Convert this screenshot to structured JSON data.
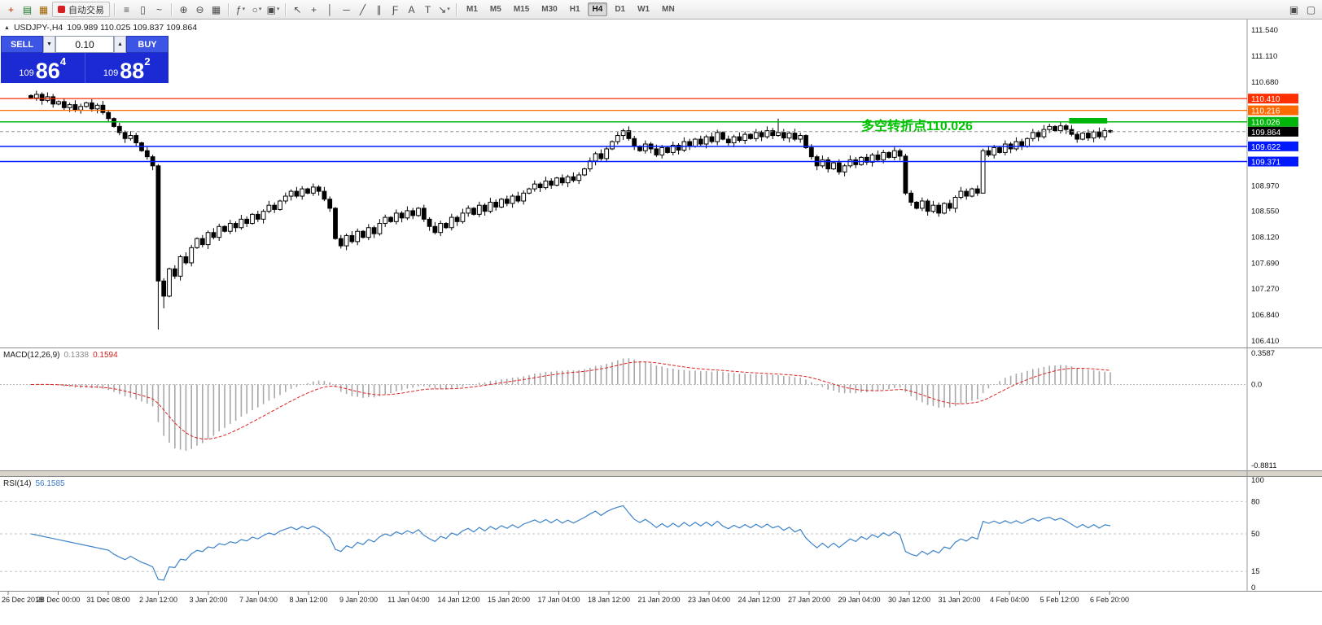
{
  "toolbar": {
    "left_icons": [
      {
        "name": "new-order-icon",
        "glyph": "+",
        "color": "#b33000"
      },
      {
        "name": "chart-window-icon",
        "glyph": "▤",
        "color": "#1f7a2d"
      },
      {
        "name": "profiles-icon",
        "glyph": "▦",
        "color": "#a06500"
      }
    ],
    "auto_trading": {
      "label": "自动交易",
      "dot_color": "#d42020"
    },
    "chart_type_icons": [
      {
        "name": "bar-chart-icon",
        "glyph": "≡"
      },
      {
        "name": "candlestick-chart-icon",
        "glyph": "▯"
      },
      {
        "name": "line-chart-icon",
        "glyph": "~"
      }
    ],
    "zoom_icons": [
      {
        "name": "zoom-in-icon",
        "glyph": "⊕"
      },
      {
        "name": "zoom-out-icon",
        "glyph": "⊖"
      },
      {
        "name": "tile-windows-icon",
        "glyph": "▦"
      }
    ],
    "insert_icons": [
      {
        "name": "indicators-icon",
        "glyph": "ƒ",
        "dropdown": true
      },
      {
        "name": "periods-icon",
        "glyph": "○",
        "dropdown": true
      },
      {
        "name": "templates-icon",
        "glyph": "▣",
        "dropdown": true
      }
    ],
    "tool_icons": [
      {
        "name": "cursor-icon",
        "glyph": "↖"
      },
      {
        "name": "crosshair-icon",
        "glyph": "+"
      },
      {
        "name": "vertical-line-icon",
        "glyph": "│"
      },
      {
        "name": "horizontal-line-icon",
        "glyph": "─"
      },
      {
        "name": "trendline-icon",
        "glyph": "╱"
      },
      {
        "name": "channel-icon",
        "glyph": "∥"
      },
      {
        "name": "fibonacci-icon",
        "glyph": "Ƒ"
      },
      {
        "name": "text-icon",
        "glyph": "A"
      },
      {
        "name": "label-icon",
        "glyph": "T"
      },
      {
        "name": "arrows-icon",
        "glyph": "↘",
        "dropdown": true
      }
    ],
    "timeframes": [
      "M1",
      "M5",
      "M15",
      "M30",
      "H1",
      "H4",
      "D1",
      "W1",
      "MN"
    ],
    "active_timeframe": "H4",
    "right_icons": [
      {
        "name": "organize-windows-icon",
        "glyph": "▣"
      },
      {
        "name": "docking-icon",
        "glyph": "▢"
      }
    ]
  },
  "chart": {
    "menu_glyph": "▲",
    "title": "USDJPY-,H4",
    "ohlc_text": "109.989 110.025 109.837 109.864"
  },
  "trade_panel": {
    "sell_label": "SELL",
    "buy_label": "BUY",
    "lot_size": "0.10",
    "lot_down_glyph": "▼",
    "lot_up_glyph": "▲",
    "sell_price": {
      "prefix": "109",
      "big": "86",
      "sup": "4"
    },
    "buy_price": {
      "prefix": "109",
      "big": "88",
      "sup": "2"
    }
  },
  "annotation": {
    "text": "多空转折点110.026",
    "color": "#00c400"
  },
  "lines": [
    {
      "price": 110.41,
      "label": "110.410",
      "color": "#ff2f00",
      "width": 1.2
    },
    {
      "price": 110.216,
      "label": "110.216",
      "color": "#ff6a00",
      "width": 1.2
    },
    {
      "price": 110.026,
      "label": "110.026",
      "color": "#00b60a",
      "width": 1.4
    },
    {
      "price": 109.622,
      "label": "109.622",
      "color": "#0019ff",
      "width": 1.5
    },
    {
      "price": 109.371,
      "label": "109.371",
      "color": "#0019ff",
      "width": 1.5
    }
  ],
  "current_price": {
    "value": 109.864,
    "label": "109.864",
    "bg": "#000000"
  },
  "time_axis": [
    "26 Dec 2018",
    "28 Dec 00:00",
    "31 Dec 08:00",
    "2 Jan 12:00",
    "3 Jan 20:00",
    "7 Jan 04:00",
    "8 Jan 12:00",
    "9 Jan 20:00",
    "11 Jan 04:00",
    "14 Jan 12:00",
    "15 Jan 20:00",
    "17 Jan 04:00",
    "18 Jan 12:00",
    "21 Jan 20:00",
    "23 Jan 04:00",
    "24 Jan 12:00",
    "27 Jan 20:00",
    "29 Jan 04:00",
    "30 Jan 12:00",
    "31 Jan 20:00",
    "4 Feb 04:00",
    "5 Feb 12:00",
    "6 Feb 20:00"
  ],
  "chart_data": {
    "type": "candlestick",
    "symbol": "USDJPY-",
    "timeframe": "H4",
    "ohlc": {
      "open": 109.989,
      "high": 110.025,
      "low": 109.837,
      "close": 109.864
    },
    "price_axis_labels": [
      "111.540",
      "111.110",
      "110.680",
      "108.970",
      "108.550",
      "108.120",
      "107.690",
      "107.270",
      "106.840",
      "106.410"
    ],
    "price_axis_values": [
      111.54,
      111.11,
      110.68,
      108.97,
      108.55,
      108.12,
      107.69,
      107.27,
      106.84,
      106.41
    ],
    "closes": [
      110.42,
      110.48,
      110.38,
      110.44,
      110.32,
      110.36,
      110.26,
      110.31,
      110.22,
      110.28,
      110.34,
      110.24,
      110.3,
      110.18,
      110.08,
      109.95,
      109.85,
      109.75,
      109.8,
      109.68,
      109.55,
      109.45,
      109.3,
      107.4,
      107.15,
      107.6,
      107.48,
      107.8,
      107.7,
      107.95,
      108.1,
      108.0,
      108.2,
      108.12,
      108.3,
      108.22,
      108.35,
      108.28,
      108.42,
      108.35,
      108.5,
      108.42,
      108.55,
      108.65,
      108.58,
      108.72,
      108.8,
      108.88,
      108.8,
      108.92,
      108.85,
      108.95,
      108.88,
      108.75,
      108.6,
      108.1,
      107.98,
      108.15,
      108.05,
      108.22,
      108.12,
      108.28,
      108.18,
      108.35,
      108.45,
      108.38,
      108.52,
      108.44,
      108.56,
      108.48,
      108.6,
      108.42,
      108.3,
      108.2,
      108.35,
      108.28,
      108.45,
      108.38,
      108.52,
      108.6,
      108.5,
      108.65,
      108.55,
      108.7,
      108.62,
      108.75,
      108.68,
      108.8,
      108.72,
      108.85,
      108.92,
      109.0,
      108.94,
      109.05,
      108.98,
      109.1,
      109.02,
      109.12,
      109.06,
      109.15,
      109.25,
      109.38,
      109.5,
      109.42,
      109.58,
      109.7,
      109.8,
      109.88,
      109.75,
      109.62,
      109.55,
      109.66,
      109.58,
      109.48,
      109.6,
      109.52,
      109.64,
      109.56,
      109.7,
      109.62,
      109.74,
      109.66,
      109.78,
      109.7,
      109.85,
      109.74,
      109.68,
      109.78,
      109.72,
      109.82,
      109.75,
      109.85,
      109.78,
      109.88,
      109.8,
      109.85,
      109.76,
      109.84,
      109.74,
      109.8,
      109.6,
      109.45,
      109.3,
      109.4,
      109.25,
      109.35,
      109.2,
      109.3,
      109.4,
      109.32,
      109.44,
      109.36,
      109.48,
      109.4,
      109.52,
      109.44,
      109.55,
      109.46,
      108.85,
      108.7,
      108.6,
      108.72,
      108.55,
      108.65,
      108.52,
      108.68,
      108.6,
      108.78,
      108.88,
      108.8,
      108.92,
      108.85,
      109.55,
      109.48,
      109.6,
      109.52,
      109.66,
      109.58,
      109.7,
      109.62,
      109.75,
      109.85,
      109.78,
      109.9,
      109.95,
      109.88,
      109.96,
      109.9,
      109.82,
      109.74,
      109.84,
      109.76,
      109.86,
      109.78,
      109.88,
      109.86
    ],
    "wick_overrides": {
      "23": {
        "low": 106.6,
        "high": 109.33
      },
      "24": {
        "low": 106.95
      },
      "135": {
        "high": 110.08
      },
      "158": {
        "high": 109.5
      },
      "172": {
        "low": 108.85
      }
    },
    "highlight_box": {
      "from": 188,
      "to": 194,
      "price_top": 110.09,
      "price_bottom": 110.0,
      "color": "#00b60a"
    },
    "indicators": {
      "macd": {
        "label": "MACD(12,26,9)",
        "value_main": "0.1338",
        "value_signal": "0.1594",
        "fast": 12,
        "slow": 26,
        "signal": 9,
        "axis_labels": [
          "0.3587",
          "0.0",
          "-0.8811"
        ],
        "axis_values": [
          0.3587,
          0,
          -0.8811
        ]
      },
      "rsi": {
        "label": "RSI(14)",
        "value": "56.1585",
        "period": 14,
        "axis_labels": [
          "100",
          "80",
          "50",
          "15",
          "0"
        ],
        "axis_values": [
          100,
          80,
          50,
          15,
          0
        ],
        "levels": [
          80,
          50,
          15
        ]
      }
    }
  }
}
